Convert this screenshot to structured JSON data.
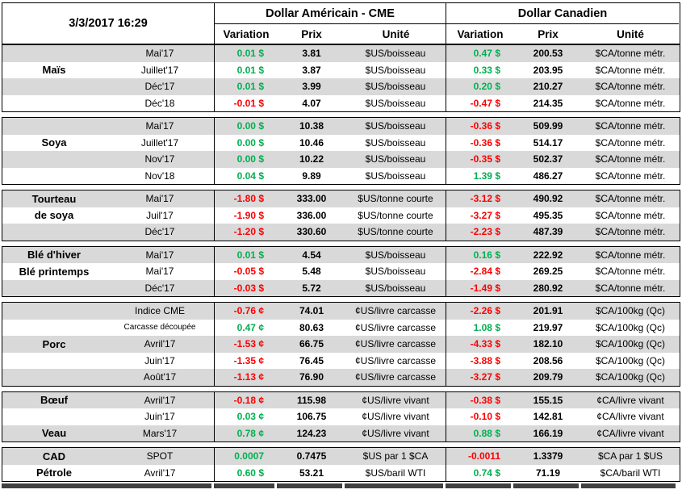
{
  "colors": {
    "positive": "#00B050",
    "negative": "#FF0000",
    "stripe": "#D9D9D9"
  },
  "header": {
    "timestamp": "3/3/2017 16:29",
    "usd_group_title": "Dollar Américain - CME",
    "cad_group_title": "Dollar Canadien",
    "col_variation": "Variation",
    "col_prix": "Prix",
    "col_unite": "Unité"
  },
  "sections": [
    {
      "id": "mais",
      "rows": [
        {
          "name": "",
          "month": "Mai'17",
          "us_var": "0.01 $",
          "us_prix": "3.81",
          "us_unit": "$US/boisseau",
          "ca_var": "0.47 $",
          "ca_prix": "200.53",
          "ca_unit": "$CA/tonne métr."
        },
        {
          "name": "Maïs",
          "month": "Juillet'17",
          "us_var": "0.01 $",
          "us_prix": "3.87",
          "us_unit": "$US/boisseau",
          "ca_var": "0.33 $",
          "ca_prix": "203.95",
          "ca_unit": "$CA/tonne métr."
        },
        {
          "name": "",
          "month": "Déc'17",
          "us_var": "0.01 $",
          "us_prix": "3.99",
          "us_unit": "$US/boisseau",
          "ca_var": "0.20 $",
          "ca_prix": "210.27",
          "ca_unit": "$CA/tonne métr."
        },
        {
          "name": "",
          "month": "Déc'18",
          "us_var": "-0.01 $",
          "us_prix": "4.07",
          "us_unit": "$US/boisseau",
          "ca_var": "-0.47 $",
          "ca_prix": "214.35",
          "ca_unit": "$CA/tonne métr."
        }
      ]
    },
    {
      "id": "soya",
      "rows": [
        {
          "name": "",
          "month": "Mai'17",
          "us_var": "0.00 $",
          "us_prix": "10.38",
          "us_unit": "$US/boisseau",
          "ca_var": "-0.36 $",
          "ca_prix": "509.99",
          "ca_unit": "$CA/tonne métr."
        },
        {
          "name": "Soya",
          "month": "Juillet'17",
          "us_var": "0.00 $",
          "us_prix": "10.46",
          "us_unit": "$US/boisseau",
          "ca_var": "-0.36 $",
          "ca_prix": "514.17",
          "ca_unit": "$CA/tonne métr."
        },
        {
          "name": "",
          "month": "Nov'17",
          "us_var": "0.00 $",
          "us_prix": "10.22",
          "us_unit": "$US/boisseau",
          "ca_var": "-0.35 $",
          "ca_prix": "502.37",
          "ca_unit": "$CA/tonne métr."
        },
        {
          "name": "",
          "month": "Nov'18",
          "us_var": "0.04 $",
          "us_prix": "9.89",
          "us_unit": "$US/boisseau",
          "ca_var": "1.39 $",
          "ca_prix": "486.27",
          "ca_unit": "$CA/tonne métr."
        }
      ]
    },
    {
      "id": "tourteau-de-soya",
      "rows": [
        {
          "name": "Tourteau",
          "month": "Mai'17",
          "us_var": "-1.80 $",
          "us_prix": "333.00",
          "us_unit": "$US/tonne courte",
          "ca_var": "-3.12 $",
          "ca_prix": "490.92",
          "ca_unit": "$CA/tonne métr."
        },
        {
          "name": "de soya",
          "month": "Juil'17",
          "us_var": "-1.90 $",
          "us_prix": "336.00",
          "us_unit": "$US/tonne courte",
          "ca_var": "-3.27 $",
          "ca_prix": "495.35",
          "ca_unit": "$CA/tonne métr."
        },
        {
          "name": "",
          "month": "Déc'17",
          "us_var": "-1.20 $",
          "us_prix": "330.60",
          "us_unit": "$US/tonne courte",
          "ca_var": "-2.23 $",
          "ca_prix": "487.39",
          "ca_unit": "$CA/tonne métr."
        }
      ]
    },
    {
      "id": "ble",
      "rows": [
        {
          "name": "Blé d'hiver",
          "month": "Mai'17",
          "us_var": "0.01 $",
          "us_prix": "4.54",
          "us_unit": "$US/boisseau",
          "ca_var": "0.16 $",
          "ca_prix": "222.92",
          "ca_unit": "$CA/tonne métr."
        },
        {
          "name": "Blé printemps",
          "month": "Mai'17",
          "us_var": "-0.05 $",
          "us_prix": "5.48",
          "us_unit": "$US/boisseau",
          "ca_var": "-2.84 $",
          "ca_prix": "269.25",
          "ca_unit": "$CA/tonne métr."
        },
        {
          "name": "",
          "month": "Déc'17",
          "us_var": "-0.03 $",
          "us_prix": "5.72",
          "us_unit": "$US/boisseau",
          "ca_var": "-1.49 $",
          "ca_prix": "280.92",
          "ca_unit": "$CA/tonne métr."
        }
      ]
    },
    {
      "id": "porc",
      "rows": [
        {
          "name": "",
          "month": "Indice CME",
          "us_var": "-0.76 ¢",
          "us_prix": "74.01",
          "us_unit": "¢US/livre carcasse",
          "ca_var": "-2.26 $",
          "ca_prix": "201.91",
          "ca_unit": "$CA/100kg (Qc)"
        },
        {
          "name": "",
          "month": "Carcasse découpée",
          "us_var": "0.47 ¢",
          "us_prix": "80.63",
          "us_unit": "¢US/livre carcasse",
          "ca_var": "1.08 $",
          "ca_prix": "219.97",
          "ca_unit": "$CA/100kg (Qc)"
        },
        {
          "name": "Porc",
          "month": "Avril'17",
          "us_var": "-1.53 ¢",
          "us_prix": "66.75",
          "us_unit": "¢US/livre carcasse",
          "ca_var": "-4.33 $",
          "ca_prix": "182.10",
          "ca_unit": "$CA/100kg (Qc)"
        },
        {
          "name": "",
          "month": "Juin'17",
          "us_var": "-1.35 ¢",
          "us_prix": "76.45",
          "us_unit": "¢US/livre carcasse",
          "ca_var": "-3.88 $",
          "ca_prix": "208.56",
          "ca_unit": "$CA/100kg (Qc)"
        },
        {
          "name": "",
          "month": "Août'17",
          "us_var": "-1.13 ¢",
          "us_prix": "76.90",
          "us_unit": "¢US/livre carcasse",
          "ca_var": "-3.27 $",
          "ca_prix": "209.79",
          "ca_unit": "$CA/100kg (Qc)"
        }
      ]
    },
    {
      "id": "boeuf-veau",
      "rows": [
        {
          "name": "Bœuf",
          "month": "Avril'17",
          "us_var": "-0.18 ¢",
          "us_prix": "115.98",
          "us_unit": "¢US/livre vivant",
          "ca_var": "-0.38 $",
          "ca_prix": "155.15",
          "ca_unit": "¢CA/livre vivant"
        },
        {
          "name": "",
          "month": "Juin'17",
          "us_var": "0.03 ¢",
          "us_prix": "106.75",
          "us_unit": "¢US/livre vivant",
          "ca_var": "-0.10 $",
          "ca_prix": "142.81",
          "ca_unit": "¢CA/livre vivant"
        },
        {
          "name": "Veau",
          "month": "Mars'17",
          "us_var": "0.78 ¢",
          "us_prix": "124.23",
          "us_unit": "¢US/livre vivant",
          "ca_var": "0.88 $",
          "ca_prix": "166.19",
          "ca_unit": "¢CA/livre vivant"
        }
      ]
    },
    {
      "id": "cad-petrole",
      "rows": [
        {
          "name": "CAD",
          "month": "SPOT",
          "us_var": "0.0007",
          "us_prix": "0.7475",
          "us_unit": "$US par 1 $CA",
          "ca_var": "-0.0011",
          "ca_prix": "1.3379",
          "ca_unit": "$CA par 1 $US"
        },
        {
          "name": "Pétrole",
          "month": "Avril'17",
          "us_var": "0.60 $",
          "us_prix": "53.21",
          "us_unit": "$US/baril WTI",
          "ca_var": "0.74 $",
          "ca_prix": "71.19",
          "ca_unit": "$CA/baril WTI"
        }
      ]
    }
  ]
}
